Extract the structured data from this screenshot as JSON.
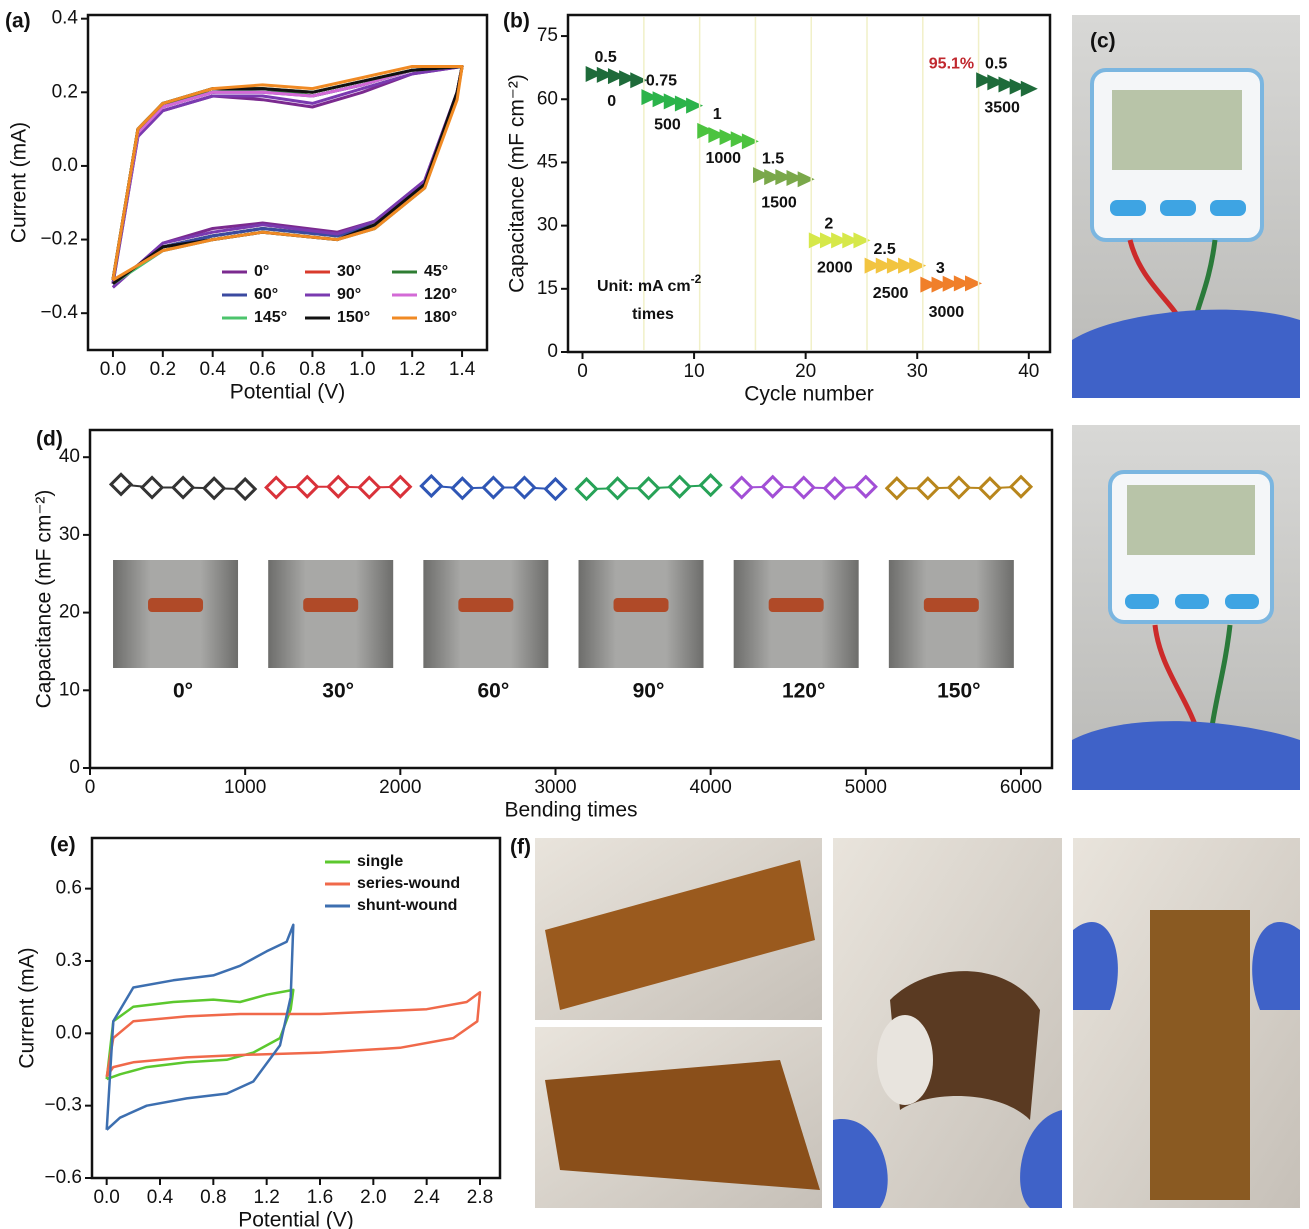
{
  "chart_data": [
    {
      "type": "line",
      "label": "(a)",
      "xlabel": "Potential (V)",
      "ylabel": "Current (mA)",
      "xlim": [
        -0.1,
        1.5
      ],
      "ylim": [
        -0.5,
        0.41
      ],
      "xticks": [
        {
          "value": 0,
          "label": "0.0"
        },
        {
          "value": 0.2,
          "label": "0.2"
        },
        {
          "value": 0.4,
          "label": "0.4"
        },
        {
          "value": 0.6,
          "label": "0.6"
        },
        {
          "value": 0.8,
          "label": "0.8"
        },
        {
          "value": 1.0,
          "label": "1.0"
        },
        {
          "value": 1.2,
          "label": "1.2"
        },
        {
          "value": 1.4,
          "label": "1.4"
        }
      ],
      "yticks": [
        {
          "value": -0.4,
          "label": "−0.4"
        },
        {
          "value": -0.2,
          "label": "−0.2"
        },
        {
          "value": 0,
          "label": "0.0"
        },
        {
          "value": 0.2,
          "label": "0.2"
        },
        {
          "value": 0.4,
          "label": "0.4"
        }
      ],
      "x": [
        0,
        0.1,
        0.2,
        0.4,
        0.6,
        0.8,
        1.0,
        1.2,
        1.4,
        1.38,
        1.25,
        1.05,
        0.9,
        0.6,
        0.4,
        0.2,
        0
      ],
      "series": [
        {
          "name": "0°",
          "color": "#7b2a8f",
          "values": [
            -0.32,
            0.08,
            0.15,
            0.19,
            0.18,
            0.16,
            0.2,
            0.25,
            0.27,
            0.2,
            -0.04,
            -0.15,
            -0.18,
            -0.155,
            -0.17,
            -0.21,
            -0.33
          ]
        },
        {
          "name": "30°",
          "color": "#d93a2b",
          "values": [
            -0.31,
            0.1,
            0.17,
            0.2,
            0.21,
            0.2,
            0.23,
            0.26,
            0.27,
            0.2,
            -0.05,
            -0.15,
            -0.19,
            -0.17,
            -0.19,
            -0.22,
            -0.32
          ]
        },
        {
          "name": "45°",
          "color": "#2e7d32",
          "values": [
            -0.31,
            0.1,
            0.17,
            0.2,
            0.21,
            0.19,
            0.22,
            0.26,
            0.27,
            0.2,
            -0.05,
            -0.15,
            -0.19,
            -0.17,
            -0.19,
            -0.22,
            -0.32
          ]
        },
        {
          "name": "60°",
          "color": "#3b4aa0",
          "values": [
            -0.31,
            0.09,
            0.16,
            0.2,
            0.2,
            0.19,
            0.22,
            0.26,
            0.27,
            0.2,
            -0.05,
            -0.16,
            -0.19,
            -0.17,
            -0.19,
            -0.22,
            -0.32
          ]
        },
        {
          "name": "90°",
          "color": "#7a3ab0",
          "values": [
            -0.32,
            0.08,
            0.15,
            0.19,
            0.19,
            0.17,
            0.21,
            0.25,
            0.27,
            0.2,
            -0.04,
            -0.15,
            -0.185,
            -0.16,
            -0.18,
            -0.21,
            -0.33
          ]
        },
        {
          "name": "120°",
          "color": "#d36ad6",
          "values": [
            -0.31,
            0.09,
            0.16,
            0.2,
            0.2,
            0.19,
            0.22,
            0.26,
            0.27,
            0.19,
            -0.06,
            -0.17,
            -0.2,
            -0.18,
            -0.2,
            -0.23,
            -0.32
          ]
        },
        {
          "name": "145°",
          "color": "#4cc46c",
          "values": [
            -0.31,
            0.1,
            0.17,
            0.21,
            0.21,
            0.2,
            0.23,
            0.26,
            0.27,
            0.19,
            -0.06,
            -0.17,
            -0.2,
            -0.18,
            -0.2,
            -0.23,
            -0.32
          ]
        },
        {
          "name": "150°",
          "color": "#111111",
          "values": [
            -0.31,
            0.1,
            0.17,
            0.21,
            0.21,
            0.2,
            0.23,
            0.26,
            0.27,
            0.2,
            -0.05,
            -0.16,
            -0.2,
            -0.18,
            -0.2,
            -0.22,
            -0.32
          ]
        },
        {
          "name": "180°",
          "color": "#f08a24",
          "values": [
            -0.31,
            0.1,
            0.17,
            0.21,
            0.22,
            0.21,
            0.24,
            0.27,
            0.27,
            0.18,
            -0.06,
            -0.17,
            -0.2,
            -0.18,
            -0.2,
            -0.23,
            -0.31
          ]
        }
      ]
    },
    {
      "type": "scatter",
      "marker": "triangle",
      "label": "(b)",
      "xlabel": "Cycle number",
      "ylabel": "Capacitance (mF cm⁻²)",
      "xlim": [
        -1.3,
        41.9
      ],
      "ylim": [
        0,
        80
      ],
      "xticks": [
        0,
        10,
        20,
        30,
        40
      ],
      "yticks": [
        0,
        15,
        30,
        45,
        60,
        75
      ],
      "unit_label": "Unit: mA cm",
      "unit_power": "-2",
      "unit_times": "times",
      "annotation": "95.1%",
      "annotation_color": "#c0282e",
      "series": [
        {
          "name": "0.5",
          "label": "0",
          "color": "#1e6b3a",
          "x": [
            1,
            2,
            3,
            4,
            5
          ],
          "values": [
            66,
            65.8,
            65.5,
            65,
            64.5
          ]
        },
        {
          "name": "0.75",
          "label": "500",
          "color": "#2bb34a",
          "x": [
            6,
            7,
            8,
            9,
            10
          ],
          "values": [
            60.5,
            60,
            59.5,
            59,
            58.5
          ]
        },
        {
          "name": "1",
          "label": "1000",
          "color": "#4cc33f",
          "x": [
            11,
            12,
            13,
            14,
            15
          ],
          "values": [
            52.5,
            51.5,
            51,
            50.5,
            50
          ]
        },
        {
          "name": "1.5",
          "label": "1500",
          "color": "#7aa84a",
          "x": [
            16,
            17,
            18,
            19,
            20
          ],
          "values": [
            42,
            41.5,
            41.5,
            41.3,
            41
          ]
        },
        {
          "name": "2",
          "label": "2000",
          "color": "#d6e84a",
          "x": [
            21,
            22,
            23,
            24,
            25
          ],
          "values": [
            26.5,
            26.5,
            26.5,
            26.5,
            26.5
          ]
        },
        {
          "name": "2.5",
          "label": "2500",
          "color": "#f2c440",
          "x": [
            26,
            27,
            28,
            29,
            30
          ],
          "values": [
            20.5,
            20.5,
            20.5,
            20.5,
            20.5
          ]
        },
        {
          "name": "3",
          "label": "3000",
          "color": "#f07f2a",
          "x": [
            31,
            32,
            33,
            34,
            35
          ],
          "values": [
            16,
            16,
            16.2,
            16.3,
            16.3
          ]
        },
        {
          "name": "0.5",
          "label": "3500",
          "color": "#1e6b3a",
          "x": [
            36,
            37,
            38,
            39,
            40
          ],
          "values": [
            64.5,
            64,
            63.5,
            63,
            62.5
          ]
        }
      ]
    },
    {
      "type": "scatter",
      "marker": "diamond",
      "label": "(d)",
      "xlabel": "Bending times",
      "ylabel": "Capacitance (mF cm⁻²)",
      "xlim": [
        0,
        6200
      ],
      "ylim": [
        0,
        43.5
      ],
      "xticks": [
        0,
        1000,
        2000,
        3000,
        4000,
        5000,
        6000
      ],
      "yticks": [
        0,
        10,
        20,
        30,
        40
      ],
      "series": [
        {
          "name": "0°",
          "color": "#333333",
          "x": [
            200,
            400,
            600,
            800,
            1000
          ],
          "values": [
            36.5,
            36.1,
            36.1,
            36.0,
            35.9
          ]
        },
        {
          "name": "30°",
          "color": "#d9323a",
          "x": [
            1200,
            1400,
            1600,
            1800,
            2000
          ],
          "values": [
            36.1,
            36.2,
            36.2,
            36.1,
            36.2
          ]
        },
        {
          "name": "60°",
          "color": "#2f56b5",
          "x": [
            2200,
            2400,
            2600,
            2800,
            3000
          ],
          "values": [
            36.3,
            36.0,
            36.1,
            36.1,
            35.9
          ]
        },
        {
          "name": "90°",
          "color": "#27a257",
          "x": [
            3200,
            3400,
            3600,
            3800,
            4000
          ],
          "values": [
            35.9,
            36.0,
            36.0,
            36.2,
            36.4
          ]
        },
        {
          "name": "120°",
          "color": "#a24fd6",
          "x": [
            4200,
            4400,
            4600,
            4800,
            5000
          ],
          "values": [
            36.1,
            36.2,
            36.1,
            36.0,
            36.2
          ]
        },
        {
          "name": "150°",
          "color": "#b8861c",
          "x": [
            5200,
            5400,
            5600,
            5800,
            6000
          ],
          "values": [
            36.0,
            36.0,
            36.1,
            36.0,
            36.2
          ]
        }
      ]
    },
    {
      "type": "line",
      "label": "(e)",
      "xlabel": "Potential (V)",
      "ylabel": "Current (mA)",
      "xlim": [
        -0.11,
        2.95
      ],
      "ylim": [
        -0.6,
        0.81
      ],
      "xticks": [
        {
          "value": 0,
          "label": "0.0"
        },
        {
          "value": 0.4,
          "label": "0.4"
        },
        {
          "value": 0.8,
          "label": "0.8"
        },
        {
          "value": 1.2,
          "label": "1.2"
        },
        {
          "value": 1.6,
          "label": "1.6"
        },
        {
          "value": 2.0,
          "label": "2.0"
        },
        {
          "value": 2.4,
          "label": "2.4"
        },
        {
          "value": 2.8,
          "label": "2.8"
        }
      ],
      "yticks": [
        {
          "value": -0.6,
          "label": "−0.6"
        },
        {
          "value": -0.3,
          "label": "−0.3"
        },
        {
          "value": 0,
          "label": "0.0"
        },
        {
          "value": 0.3,
          "label": "0.3"
        },
        {
          "value": 0.6,
          "label": "0.6"
        }
      ],
      "series": [
        {
          "name": "single",
          "color": "#5cc82e",
          "x": [
            0,
            0.05,
            0.2,
            0.5,
            0.8,
            1.0,
            1.2,
            1.4,
            1.38,
            1.3,
            1.1,
            0.9,
            0.6,
            0.3,
            0.1,
            0
          ],
          "values": [
            -0.19,
            0.05,
            0.11,
            0.13,
            0.14,
            0.13,
            0.16,
            0.18,
            0.1,
            -0.02,
            -0.08,
            -0.11,
            -0.12,
            -0.14,
            -0.17,
            -0.19
          ]
        },
        {
          "name": "series-wound",
          "color": "#f0694a",
          "x": [
            0,
            0.05,
            0.2,
            0.6,
            1.0,
            1.6,
            2.0,
            2.4,
            2.7,
            2.8,
            2.78,
            2.6,
            2.2,
            1.6,
            1.0,
            0.6,
            0.2,
            0.05,
            0
          ],
          "values": [
            -0.18,
            -0.02,
            0.05,
            0.07,
            0.08,
            0.08,
            0.09,
            0.1,
            0.13,
            0.17,
            0.05,
            -0.02,
            -0.06,
            -0.08,
            -0.09,
            -0.1,
            -0.12,
            -0.14,
            -0.18
          ]
        },
        {
          "name": "shunt-wound",
          "color": "#3d6fb0",
          "x": [
            0,
            0.05,
            0.2,
            0.5,
            0.8,
            1.0,
            1.2,
            1.35,
            1.4,
            1.38,
            1.3,
            1.1,
            0.9,
            0.6,
            0.3,
            0.1,
            0
          ],
          "values": [
            -0.4,
            0.05,
            0.19,
            0.22,
            0.24,
            0.28,
            0.34,
            0.38,
            0.45,
            0.15,
            -0.05,
            -0.2,
            -0.25,
            -0.27,
            -0.3,
            -0.35,
            -0.4
          ]
        }
      ]
    }
  ],
  "photo_labels": [
    "(c)",
    "(f)"
  ]
}
